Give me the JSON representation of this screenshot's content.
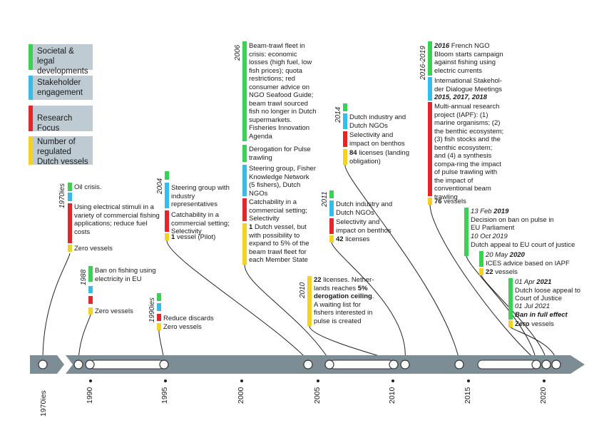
{
  "colors": {
    "societal": "#39d353",
    "stakeholder": "#33bde8",
    "research": "#e8242b",
    "vessels": "#f4d21f",
    "axis": "#7d8d96",
    "legend_bg": "#bfcbd3"
  },
  "legend": [
    {
      "label": "Societal & legal developments",
      "color": "societal"
    },
    {
      "label": "Stakeholder engagement",
      "color": "stakeholder"
    },
    {
      "label": "Research Focus",
      "color": "research"
    },
    {
      "label": "Number of regulated Dutch vessels",
      "color": "vessels"
    }
  ],
  "axis": {
    "first_label": "1970ies",
    "ticks": [
      "1990",
      "1995",
      "2000",
      "2005",
      "2010",
      "2015",
      "2020"
    ]
  },
  "events": {
    "e1970": {
      "year": "1970ies",
      "societal": "Oil crisis.",
      "research": "Using electrical stimuli in a variety of commercial fishing applications; reduce fuel costs",
      "vessels": "Zero vessels"
    },
    "e1988": {
      "year": "1988",
      "societal": "Ban on fishing using electricity in EU",
      "vessels": "Zero vessels"
    },
    "e1990": {
      "year": "1990ies",
      "research": "Reduce discards",
      "vessels": "Zero vessels"
    },
    "e2004": {
      "year": "2004",
      "stakeholder": "Steering group with industry representatives",
      "research": "Catchability in a commercial setting; Selectivity",
      "vessels_num": "1",
      "vessels_rest": "vessel (Pilot)"
    },
    "e2006": {
      "year": "2006",
      "societal1": "Beam-trawl fleet in crisis: economic losses (high fuel, low fish prices); quota restrictions; red consumer advice on NGO Seafood Guide; beam trawl sourced fish no longer in Dutch supermarkets. Fisheries Innovation Agenda",
      "societal2": "Derogation for Pulse trawling",
      "stakeholder": "Steering group, Fisher Knowledge Network (5 fishers), Dutch NGOs",
      "research": "Catchability in a commercial setting; Selectivity",
      "vessels_num": "1",
      "vessels_rest": "Dutch vessel, but with possibility to expand to 5% of the beam trawl fleet for each Member State"
    },
    "e2010": {
      "year": "2010",
      "vessels_num": "22",
      "vessels_a": "licenses. Nether-lands reaches",
      "vessels_bold": "5% derogation ceiling",
      "vessels_b": ". A waiting list for fishers interested in pulse is created"
    },
    "e2011": {
      "year": "2011",
      "stakeholder": "Dutch industry and Dutch NGOs",
      "research": "Selectivity and impact on benthos",
      "vessels_num": "42",
      "vessels_rest": "licenses"
    },
    "e2014": {
      "year": "2014",
      "stakeholder": "Dutch industry and Dutch NGOs",
      "research": "Selectivity and impact on benthos",
      "vessels_num": "84",
      "vessels_rest": "licenses (landing obligation)"
    },
    "e2016": {
      "year": "2016-2019",
      "societal_year": "2016",
      "societal": "French NGO Bloom starts campaign against fishing using electric currents",
      "stakeholder": "International Stakehol-der Dialogue Meetings",
      "stakeholder_years": "2015, 2017, 2018",
      "research": "Multi-annual research project (IAPF): (1) marine organisms; (2) the benthic ecosystem; (3) fish stocks and the benthic ecosystem; and (4) a synthesis compa-ring the impact of pulse trawling with the impact of conventional beam trawling",
      "vessels_num": "76",
      "vessels_rest": "vessels"
    },
    "e2019": {
      "date1": "13 Feb",
      "date1_year": "2019",
      "text1": "Decision on ban on pulse in EU Parliament",
      "date2": "10 Oct 2019",
      "text2": "Dutch appeal to EU court of justice"
    },
    "e2020": {
      "date": "20 May",
      "date_year": "2020",
      "text": "ICES advice based on IAPF",
      "vessels_num": "22",
      "vessels_rest": "vessels"
    },
    "e2021": {
      "date1": "01 Apr",
      "date1_year": "2021",
      "text1": "Dutch loose appeal to Court of Justice",
      "date2": "01 Jul 2021",
      "text2": "Ban in full effect",
      "vessels_num": "Zero",
      "vessels_rest": "vessels"
    }
  }
}
